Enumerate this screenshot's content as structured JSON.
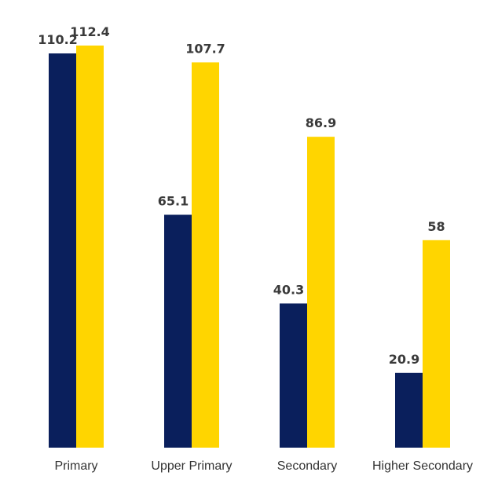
{
  "chart_data": {
    "type": "bar",
    "title": "",
    "xlabel": "",
    "ylabel": "",
    "categories": [
      "Primary",
      "Upper Primary",
      "Secondary",
      "Higher Secondary"
    ],
    "series": [
      {
        "values": [
          110.2,
          65.1,
          40.3,
          20.9
        ],
        "color": "#0a1f5c"
      },
      {
        "values": [
          112.4,
          107.7,
          86.9,
          58
        ],
        "color": "#ffd500"
      }
    ],
    "value_labels": [
      [
        "110.2",
        "65.1",
        "40.3",
        "20.9"
      ],
      [
        "112.4",
        "107.7",
        "86.9",
        "58"
      ]
    ],
    "ylim": [
      0,
      112.4
    ],
    "grid": false,
    "legend": "none"
  }
}
